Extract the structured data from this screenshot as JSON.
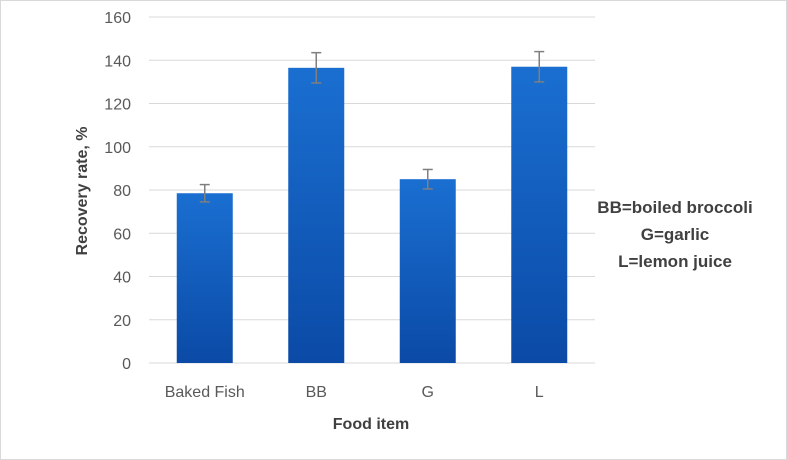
{
  "chart_data": {
    "type": "bar",
    "title": "",
    "xlabel": "Food item",
    "ylabel": "Recovery rate, %",
    "categories": [
      "Baked Fish",
      "BB",
      "G",
      "L"
    ],
    "values": [
      78.5,
      136.5,
      85,
      137
    ],
    "error": [
      4,
      7,
      4.5,
      7
    ],
    "ylim": [
      0,
      160
    ],
    "yticks": [
      0,
      20,
      40,
      60,
      80,
      100,
      120,
      140,
      160
    ],
    "grid": true,
    "legend": "none",
    "colors": {
      "bar_top": "#1a6fd1",
      "bar_bottom": "#0b4aa6",
      "error_bar": "#7f7f7f",
      "grid": "#d9d9d9"
    },
    "annotations": [
      "BB=boiled broccoli",
      "G=garlic",
      "L=lemon juice"
    ]
  }
}
